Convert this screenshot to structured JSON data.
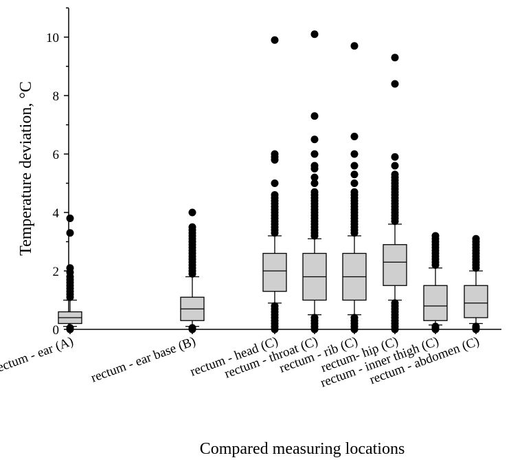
{
  "chart_data": {
    "type": "boxplot",
    "xlabel": "Compared measuring locations",
    "ylabel": "Temperature deviation, °C",
    "ylim": [
      0,
      11
    ],
    "yticks": [
      0,
      2,
      4,
      6,
      8,
      10
    ],
    "grid": false,
    "boxes": [
      {
        "label": "rectum - ear (A)",
        "whisker_low": 0.1,
        "q1": 0.2,
        "median": 0.4,
        "q3": 0.6,
        "whisker_high": 1.0,
        "outliers": [
          0.0,
          0.05,
          1.1,
          1.2,
          1.3,
          1.4,
          1.5,
          1.6,
          1.7,
          1.8,
          1.95,
          2.1,
          3.3,
          3.8
        ]
      },
      {
        "label": "rectum - ear base (B)",
        "whisker_low": 0.1,
        "q1": 0.3,
        "median": 0.7,
        "q3": 1.1,
        "whisker_high": 1.8,
        "outliers": [
          0.0,
          0.05,
          1.9,
          2.0,
          2.1,
          2.2,
          2.3,
          2.4,
          2.5,
          2.6,
          2.7,
          2.8,
          2.9,
          3.0,
          3.1,
          3.2,
          3.3,
          3.4,
          3.5,
          4.0
        ]
      },
      {
        "label": "rectum - head (C)",
        "whisker_low": 0.9,
        "q1": 1.3,
        "median": 2.0,
        "q3": 2.6,
        "whisker_high": 3.2,
        "outliers": [
          0.0,
          0.1,
          0.2,
          0.3,
          0.4,
          0.5,
          0.6,
          0.7,
          0.8,
          3.3,
          3.4,
          3.5,
          3.6,
          3.7,
          3.8,
          3.9,
          4.0,
          4.1,
          4.2,
          4.3,
          4.4,
          4.5,
          4.6,
          5.0,
          5.8,
          5.9,
          6.0,
          9.9
        ]
      },
      {
        "label": "rectum - throat (C)",
        "whisker_low": 0.5,
        "q1": 1.0,
        "median": 1.8,
        "q3": 2.6,
        "whisker_high": 3.1,
        "outliers": [
          0.0,
          0.1,
          0.2,
          0.3,
          0.4,
          3.2,
          3.3,
          3.4,
          3.5,
          3.6,
          3.7,
          3.8,
          3.9,
          4.0,
          4.1,
          4.2,
          4.3,
          4.4,
          4.5,
          4.6,
          4.7,
          5.0,
          5.2,
          5.5,
          5.6,
          6.0,
          6.5,
          7.3,
          10.1
        ]
      },
      {
        "label": "rectum - rib (C)",
        "whisker_low": 0.5,
        "q1": 1.0,
        "median": 1.8,
        "q3": 2.6,
        "whisker_high": 3.2,
        "outliers": [
          0.0,
          0.1,
          0.2,
          0.3,
          0.4,
          3.3,
          3.4,
          3.5,
          3.6,
          3.7,
          3.8,
          3.9,
          4.0,
          4.1,
          4.2,
          4.3,
          4.4,
          4.5,
          4.6,
          4.7,
          5.0,
          5.3,
          5.6,
          6.0,
          6.6,
          9.7
        ]
      },
      {
        "label": "rectum-  hip (C)",
        "whisker_low": 1.0,
        "q1": 1.5,
        "median": 2.3,
        "q3": 2.9,
        "whisker_high": 3.6,
        "outliers": [
          0.0,
          0.1,
          0.2,
          0.3,
          0.4,
          0.5,
          0.6,
          0.7,
          0.8,
          0.9,
          3.7,
          3.8,
          3.9,
          4.0,
          4.1,
          4.2,
          4.3,
          4.4,
          4.5,
          4.6,
          4.7,
          4.8,
          4.9,
          5.0,
          5.1,
          5.2,
          5.3,
          5.6,
          5.9,
          8.4,
          9.3
        ]
      },
      {
        "label": "rectum - inner thigh (C)",
        "whisker_low": 0.15,
        "q1": 0.3,
        "median": 0.8,
        "q3": 1.5,
        "whisker_high": 2.1,
        "outliers": [
          0.0,
          0.05,
          0.1,
          2.2,
          2.3,
          2.4,
          2.5,
          2.6,
          2.7,
          2.8,
          2.9,
          3.0,
          3.1,
          3.2
        ]
      },
      {
        "label": "rectum - abdomen (C)",
        "whisker_low": 0.2,
        "q1": 0.4,
        "median": 0.9,
        "q3": 1.5,
        "whisker_high": 2.0,
        "outliers": [
          0.0,
          0.05,
          0.1,
          2.1,
          2.2,
          2.3,
          2.4,
          2.5,
          2.6,
          2.7,
          2.8,
          2.9,
          3.0,
          3.1
        ]
      }
    ]
  }
}
